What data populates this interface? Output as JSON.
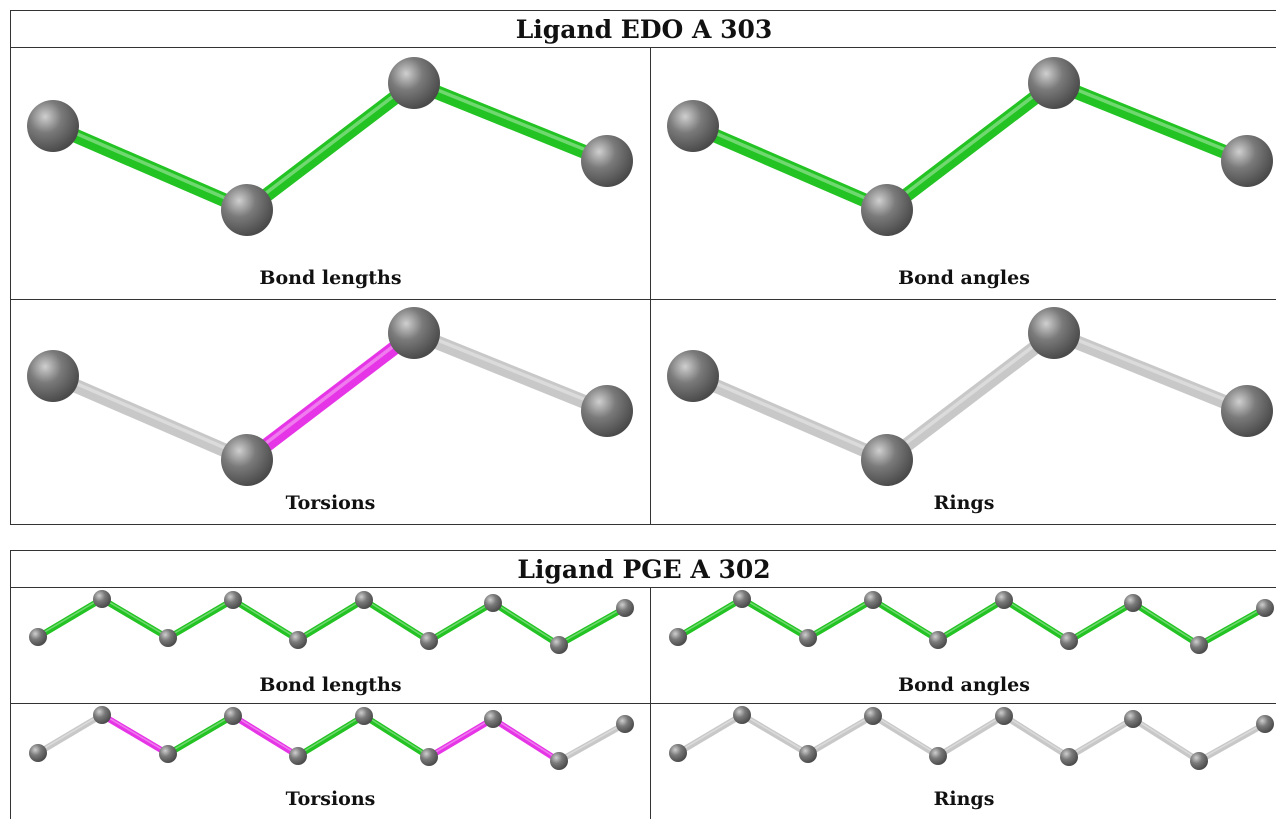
{
  "panels": [
    {
      "title": "Ligand EDO A 303",
      "views": [
        {
          "label": "Bond lengths",
          "bonds": [
            "green",
            "green",
            "green"
          ]
        },
        {
          "label": "Bond angles",
          "bonds": [
            "green",
            "green",
            "green"
          ]
        },
        {
          "label": "Torsions",
          "bonds": [
            "grey",
            "magenta",
            "grey"
          ]
        },
        {
          "label": "Rings",
          "bonds": [
            "grey",
            "grey",
            "grey"
          ]
        }
      ]
    },
    {
      "title": "Ligand PGE A 302",
      "views": [
        {
          "label": "Bond lengths",
          "bonds": [
            "green",
            "green",
            "green",
            "green",
            "green",
            "green",
            "green",
            "green",
            "green"
          ]
        },
        {
          "label": "Bond angles",
          "bonds": [
            "green",
            "green",
            "green",
            "green",
            "green",
            "green",
            "green",
            "green",
            "green"
          ]
        },
        {
          "label": "Torsions",
          "bonds": [
            "grey",
            "magenta",
            "green",
            "magenta",
            "green",
            "green",
            "magenta",
            "magenta",
            "grey"
          ]
        },
        {
          "label": "Rings",
          "bonds": [
            "grey",
            "grey",
            "grey",
            "grey",
            "grey",
            "grey",
            "grey",
            "grey",
            "grey"
          ]
        }
      ]
    }
  ],
  "colors": {
    "green": "#22c322",
    "magenta": "#e635e6",
    "grey": "#c8c8c8",
    "atom": "#7a7a7a"
  }
}
